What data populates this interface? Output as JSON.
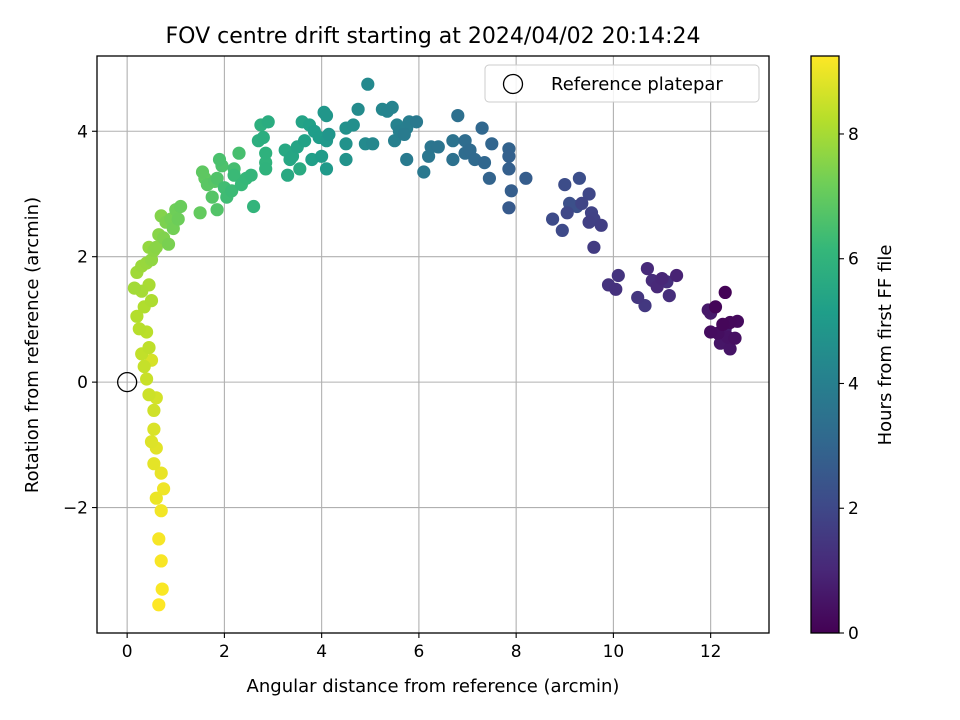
{
  "chart_data": {
    "type": "scatter",
    "title": "FOV centre drift starting at 2024/04/02 20:14:24",
    "xlabel": "Angular distance from reference (arcmin)",
    "ylabel": "Rotation from reference (arcmin)",
    "xlim": [
      -0.62,
      13.2
    ],
    "ylim": [
      -4.0,
      5.2
    ],
    "xticks": [
      0,
      2,
      4,
      6,
      8,
      10,
      12
    ],
    "yticks": [
      -2,
      0,
      2,
      4
    ],
    "xtick_labels": [
      "0",
      "2",
      "4",
      "6",
      "8",
      "10",
      "12"
    ],
    "ytick_labels": [
      "−2",
      "0",
      "2",
      "4"
    ],
    "grid": true,
    "legend": {
      "placement": "upper right",
      "label": "Reference platepar",
      "marker": "open-circle"
    },
    "reference_point": {
      "x": 0,
      "y": 0
    },
    "colorbar": {
      "label": "Hours from first FF file",
      "colormap": "viridis",
      "range": [
        0,
        9.25
      ],
      "ticks": [
        0,
        2,
        4,
        6,
        8
      ],
      "tick_labels": [
        "0",
        "2",
        "4",
        "6",
        "8"
      ],
      "stops": [
        "#440154",
        "#482878",
        "#3e4a89",
        "#31688e",
        "#26828e",
        "#1f9e89",
        "#35b779",
        "#6ece58",
        "#b5de2b",
        "#fde725"
      ]
    },
    "point_fields": [
      "x_arcmin",
      "y_arcmin",
      "hours"
    ],
    "points": [
      [
        12.3,
        1.43,
        0.05
      ],
      [
        12.1,
        1.2,
        0.1
      ],
      [
        12.25,
        0.92,
        0.15
      ],
      [
        12.4,
        0.95,
        0.2
      ],
      [
        12.55,
        0.97,
        0.25
      ],
      [
        12.0,
        0.8,
        0.3
      ],
      [
        12.15,
        0.78,
        0.35
      ],
      [
        12.5,
        0.7,
        0.4
      ],
      [
        12.35,
        0.72,
        0.45
      ],
      [
        12.4,
        0.53,
        0.5
      ],
      [
        12.2,
        0.62,
        0.55
      ],
      [
        11.95,
        1.15,
        0.6
      ],
      [
        12.0,
        1.1,
        0.65
      ],
      [
        12.3,
        0.85,
        0.7
      ],
      [
        11.3,
        1.7,
        0.9
      ],
      [
        11.0,
        1.65,
        1.0
      ],
      [
        10.9,
        1.52,
        1.05
      ],
      [
        10.7,
        1.81,
        1.1
      ],
      [
        10.8,
        1.62,
        1.15
      ],
      [
        11.15,
        1.38,
        1.2
      ],
      [
        11.1,
        1.6,
        1.25
      ],
      [
        10.05,
        1.48,
        1.3
      ],
      [
        9.9,
        1.55,
        1.35
      ],
      [
        10.1,
        1.7,
        1.4
      ],
      [
        10.5,
        1.35,
        1.45
      ],
      [
        10.65,
        1.22,
        1.5
      ],
      [
        9.6,
        2.15,
        1.6
      ],
      [
        9.75,
        2.5,
        1.7
      ],
      [
        9.5,
        2.55,
        1.75
      ],
      [
        9.6,
        2.6,
        1.8
      ],
      [
        9.55,
        2.7,
        1.85
      ],
      [
        9.35,
        2.85,
        1.9
      ],
      [
        9.5,
        3.0,
        1.95
      ],
      [
        9.05,
        2.7,
        2.0
      ],
      [
        8.95,
        2.42,
        2.05
      ],
      [
        8.75,
        2.6,
        2.1
      ],
      [
        9.0,
        3.15,
        2.15
      ],
      [
        9.3,
        3.25,
        2.2
      ],
      [
        9.1,
        2.85,
        2.25
      ],
      [
        9.25,
        2.8,
        2.3
      ],
      [
        7.85,
        2.78,
        2.6
      ],
      [
        8.2,
        3.25,
        2.7
      ],
      [
        7.9,
        3.05,
        2.75
      ],
      [
        7.85,
        3.4,
        2.8
      ],
      [
        7.85,
        3.6,
        2.85
      ],
      [
        7.85,
        3.72,
        2.9
      ],
      [
        7.45,
        3.25,
        2.95
      ],
      [
        7.5,
        3.8,
        3.0
      ],
      [
        7.35,
        3.5,
        3.05
      ],
      [
        7.3,
        4.05,
        3.1
      ],
      [
        7.15,
        3.55,
        3.15
      ],
      [
        7.05,
        3.7,
        3.2
      ],
      [
        6.95,
        3.65,
        3.25
      ],
      [
        6.95,
        3.85,
        3.3
      ],
      [
        6.8,
        4.25,
        3.4
      ],
      [
        6.7,
        3.55,
        3.45
      ],
      [
        6.7,
        3.85,
        3.5
      ],
      [
        6.4,
        3.75,
        3.55
      ],
      [
        6.25,
        3.75,
        3.6
      ],
      [
        6.2,
        3.6,
        3.65
      ],
      [
        6.1,
        3.35,
        3.7
      ],
      [
        5.95,
        4.15,
        3.75
      ],
      [
        5.75,
        3.55,
        3.8
      ],
      [
        5.7,
        3.95,
        3.85
      ],
      [
        5.8,
        4.15,
        3.9
      ],
      [
        5.75,
        4.05,
        3.95
      ],
      [
        5.6,
        4.0,
        4.0
      ],
      [
        5.5,
        3.85,
        4.05
      ],
      [
        5.55,
        4.1,
        4.1
      ],
      [
        5.45,
        4.38,
        4.15
      ],
      [
        5.35,
        4.32,
        4.2
      ],
      [
        5.25,
        4.35,
        4.25
      ],
      [
        5.05,
        3.8,
        4.3
      ],
      [
        4.95,
        4.75,
        4.35
      ],
      [
        4.9,
        3.8,
        4.4
      ],
      [
        4.75,
        4.35,
        4.45
      ],
      [
        4.65,
        4.1,
        4.6
      ],
      [
        4.5,
        4.05,
        4.65
      ],
      [
        4.5,
        3.8,
        4.7
      ],
      [
        4.5,
        3.55,
        4.75
      ],
      [
        4.15,
        3.95,
        4.8
      ],
      [
        4.1,
        4.25,
        4.85
      ],
      [
        4.05,
        4.3,
        4.9
      ],
      [
        4.1,
        3.85,
        4.95
      ],
      [
        4.1,
        3.4,
        5.0
      ],
      [
        4.0,
        3.6,
        5.05
      ],
      [
        3.95,
        3.9,
        5.1
      ],
      [
        3.85,
        4.0,
        5.15
      ],
      [
        3.8,
        3.55,
        5.2
      ],
      [
        3.75,
        4.1,
        5.25
      ],
      [
        3.65,
        3.85,
        5.3
      ],
      [
        3.6,
        4.15,
        5.35
      ],
      [
        3.5,
        3.75,
        5.4
      ],
      [
        3.4,
        3.6,
        5.45
      ],
      [
        3.35,
        3.55,
        5.5
      ],
      [
        3.25,
        3.7,
        5.55
      ],
      [
        3.3,
        3.3,
        5.6
      ],
      [
        3.55,
        3.4,
        5.65
      ],
      [
        2.9,
        4.15,
        5.7
      ],
      [
        2.8,
        3.9,
        5.75
      ],
      [
        2.7,
        3.85,
        5.8
      ],
      [
        2.75,
        4.1,
        5.85
      ],
      [
        2.85,
        3.65,
        5.9
      ],
      [
        2.85,
        3.4,
        5.95
      ],
      [
        2.85,
        3.5,
        6.0
      ],
      [
        2.6,
        2.8,
        6.05
      ],
      [
        2.55,
        3.3,
        6.1
      ],
      [
        2.45,
        3.25,
        6.15
      ],
      [
        2.35,
        3.15,
        6.2
      ],
      [
        2.2,
        3.3,
        6.25
      ],
      [
        2.15,
        3.05,
        6.3
      ],
      [
        2.05,
        2.95,
        6.35
      ],
      [
        2.0,
        3.1,
        6.4
      ],
      [
        2.2,
        3.4,
        6.45
      ],
      [
        2.3,
        3.65,
        6.5
      ],
      [
        1.9,
        3.55,
        6.55
      ],
      [
        1.95,
        3.45,
        6.6
      ],
      [
        1.85,
        3.25,
        6.65
      ],
      [
        1.85,
        2.75,
        6.7
      ],
      [
        1.75,
        2.95,
        6.75
      ],
      [
        1.8,
        3.2,
        6.8
      ],
      [
        1.65,
        3.15,
        6.85
      ],
      [
        1.55,
        3.35,
        6.9
      ],
      [
        1.6,
        3.25,
        6.95
      ],
      [
        1.5,
        2.7,
        7.0
      ],
      [
        1.1,
        2.8,
        7.1
      ],
      [
        1.05,
        2.6,
        7.15
      ],
      [
        1.0,
        2.75,
        7.2
      ],
      [
        0.95,
        2.45,
        7.25
      ],
      [
        0.9,
        2.6,
        7.3
      ],
      [
        0.85,
        2.2,
        7.35
      ],
      [
        0.8,
        2.55,
        7.4
      ],
      [
        0.75,
        2.3,
        7.45
      ],
      [
        0.7,
        2.65,
        7.5
      ],
      [
        0.65,
        2.35,
        7.55
      ],
      [
        0.6,
        2.15,
        7.6
      ],
      [
        0.55,
        2.1,
        7.65
      ],
      [
        0.5,
        1.95,
        7.7
      ],
      [
        0.45,
        2.15,
        7.75
      ],
      [
        0.4,
        1.9,
        7.8
      ],
      [
        0.3,
        1.85,
        7.85
      ],
      [
        0.2,
        1.75,
        7.9
      ],
      [
        0.15,
        1.5,
        7.95
      ],
      [
        0.3,
        1.45,
        8.0
      ],
      [
        0.45,
        1.55,
        8.05
      ],
      [
        0.5,
        1.3,
        8.1
      ],
      [
        0.35,
        1.2,
        8.15
      ],
      [
        0.2,
        1.05,
        8.2
      ],
      [
        0.25,
        0.85,
        8.25
      ],
      [
        0.4,
        0.8,
        8.3
      ],
      [
        0.45,
        0.55,
        8.35
      ],
      [
        0.3,
        0.45,
        8.4
      ],
      [
        0.35,
        0.25,
        8.45
      ],
      [
        0.4,
        0.05,
        8.5
      ],
      [
        0.45,
        -0.2,
        8.55
      ],
      [
        0.55,
        -0.45,
        8.6
      ],
      [
        0.6,
        -0.25,
        8.65
      ],
      [
        0.5,
        0.35,
        8.7
      ],
      [
        0.55,
        -0.75,
        8.75
      ],
      [
        0.5,
        -0.95,
        8.8
      ],
      [
        0.6,
        -1.05,
        8.85
      ],
      [
        0.55,
        -1.3,
        8.9
      ],
      [
        0.7,
        -1.45,
        8.95
      ],
      [
        0.6,
        -1.85,
        9.0
      ],
      [
        0.75,
        -1.7,
        9.05
      ],
      [
        0.7,
        -2.05,
        9.1
      ],
      [
        0.65,
        -2.5,
        9.15
      ],
      [
        0.7,
        -2.85,
        9.18
      ],
      [
        0.72,
        -3.3,
        9.2
      ],
      [
        0.65,
        -3.55,
        9.25
      ]
    ]
  }
}
